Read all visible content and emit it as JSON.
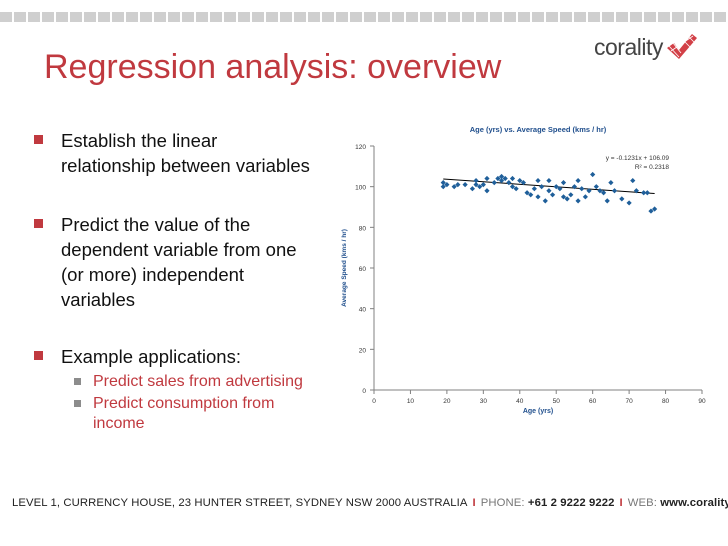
{
  "logo": {
    "text": "corality"
  },
  "title": "Regression analysis: overview",
  "bullets": [
    {
      "lines": [
        "Establish the linear",
        "relationship between variables"
      ]
    },
    {
      "lines": [
        "Predict the value of the",
        "dependent variable from one",
        "(or more) independent",
        "variables"
      ]
    },
    {
      "lines": [
        "Example applications:"
      ]
    }
  ],
  "sub_bullets": [
    {
      "lines": [
        "Predict sales from advertising"
      ]
    },
    {
      "lines": [
        "Predict consumption from",
        "income"
      ]
    }
  ],
  "chart_data": {
    "type": "scatter",
    "title": "Age (yrs) vs. Average Speed (kms / hr)",
    "xlabel": "Age (yrs)",
    "ylabel": "Average Speed (kms / hr)",
    "xlim": [
      0,
      90
    ],
    "ylim": [
      0,
      120
    ],
    "xticks": [
      0,
      10,
      20,
      30,
      40,
      50,
      60,
      70,
      80,
      90
    ],
    "yticks": [
      0,
      20,
      40,
      60,
      80,
      100,
      120
    ],
    "grid": false,
    "equation_label": "y = -0.1231x + 106.09",
    "r2_label": "R² = 0.2318",
    "trendline": {
      "slope": -0.1231,
      "intercept": 106.09,
      "x_range": [
        19,
        77
      ]
    },
    "series": [
      {
        "marker_color": "#1f5f9a",
        "points": [
          [
            19,
            100
          ],
          [
            19,
            102
          ],
          [
            20,
            101
          ],
          [
            22,
            100
          ],
          [
            23,
            101
          ],
          [
            25,
            101
          ],
          [
            27,
            99
          ],
          [
            28,
            103
          ],
          [
            28,
            101
          ],
          [
            29,
            100
          ],
          [
            30,
            101
          ],
          [
            31,
            104
          ],
          [
            31,
            98
          ],
          [
            33,
            102
          ],
          [
            34,
            104
          ],
          [
            35,
            103
          ],
          [
            35,
            105
          ],
          [
            36,
            104
          ],
          [
            37,
            102
          ],
          [
            38,
            100
          ],
          [
            38,
            104
          ],
          [
            39,
            99
          ],
          [
            40,
            103
          ],
          [
            41,
            102
          ],
          [
            42,
            97
          ],
          [
            43,
            96
          ],
          [
            44,
            99
          ],
          [
            45,
            103
          ],
          [
            45,
            95
          ],
          [
            46,
            100
          ],
          [
            47,
            93
          ],
          [
            48,
            103
          ],
          [
            48,
            98
          ],
          [
            49,
            96
          ],
          [
            50,
            100
          ],
          [
            51,
            99
          ],
          [
            52,
            102
          ],
          [
            52,
            95
          ],
          [
            53,
            94
          ],
          [
            54,
            96
          ],
          [
            55,
            100
          ],
          [
            56,
            103
          ],
          [
            56,
            93
          ],
          [
            57,
            99
          ],
          [
            58,
            95
          ],
          [
            59,
            98
          ],
          [
            60,
            106
          ],
          [
            61,
            100
          ],
          [
            62,
            98
          ],
          [
            63,
            97
          ],
          [
            64,
            93
          ],
          [
            65,
            102
          ],
          [
            66,
            98
          ],
          [
            68,
            94
          ],
          [
            70,
            92
          ],
          [
            71,
            103
          ],
          [
            72,
            98
          ],
          [
            74,
            97
          ],
          [
            75,
            97
          ],
          [
            76,
            88
          ],
          [
            77,
            89
          ]
        ]
      }
    ]
  },
  "footer": {
    "address": "LEVEL 1, CURRENCY HOUSE, 23 HUNTER STREET, SYDNEY NSW 2000 AUSTRALIA",
    "phone_label": "PHONE:",
    "phone": "+61 2 9222 9222",
    "web_label": "WEB:",
    "web": "www.corality.com"
  }
}
